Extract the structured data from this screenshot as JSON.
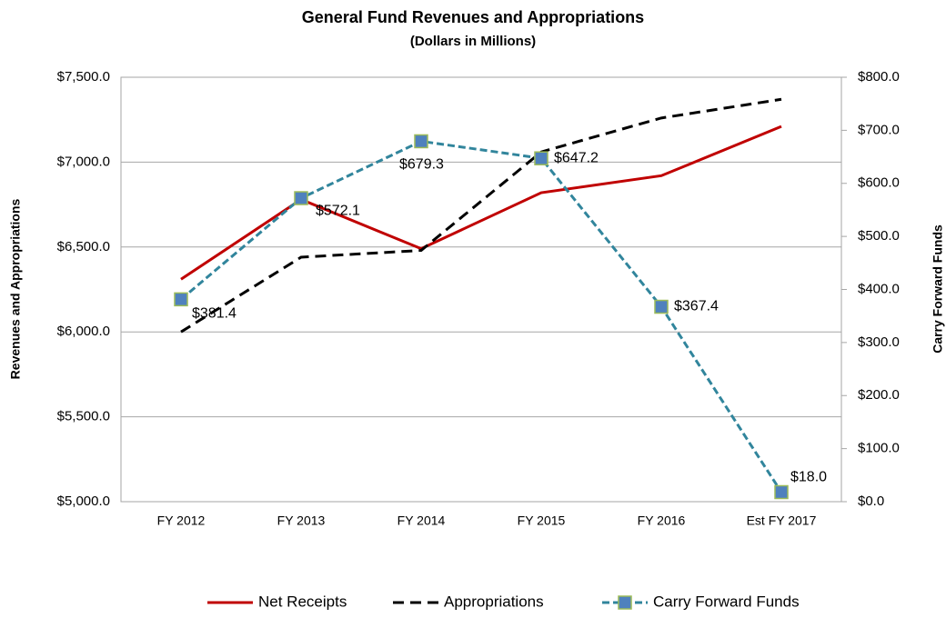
{
  "chart_data": {
    "type": "line",
    "title": "General Fund Revenues and Appropriations",
    "subtitle": "(Dollars in Millions)",
    "ylabel": "Revenues and Appropriations",
    "y2label": "Carry Forward Funds",
    "categories": [
      "FY 2012",
      "FY 2013",
      "FY 2014",
      "FY 2015",
      "FY 2016",
      "Est FY 2017"
    ],
    "series": [
      {
        "name": "Net Receipts",
        "color": "#c00000",
        "values": [
          6310,
          6780,
          6490,
          6820,
          6920,
          7210
        ]
      },
      {
        "name": "Appropriations",
        "color": "#000000",
        "values": [
          6000,
          6440,
          6480,
          7060,
          7260,
          7370
        ]
      },
      {
        "name": "Carry Forward Funds",
        "color": "#31859c",
        "axis": "y2",
        "values": [
          381.4,
          572.1,
          679.3,
          647.2,
          367.4,
          18.0
        ],
        "value_labels": [
          "$381.4",
          "$572.1",
          "$679.3",
          "$647.2",
          "$367.4",
          "$18.0"
        ]
      }
    ],
    "ylim": [
      5000,
      7500
    ],
    "yticks": [
      {
        "value": 5000,
        "label": "$5,000.0"
      },
      {
        "value": 5500,
        "label": "$5,500.0"
      },
      {
        "value": 6000,
        "label": "$6,000.0"
      },
      {
        "value": 6500,
        "label": "$6,500.0"
      },
      {
        "value": 7000,
        "label": "$7,000.0"
      },
      {
        "value": 7500,
        "label": "$7,500.0"
      }
    ],
    "y2lim": [
      0,
      800
    ],
    "y2ticks": [
      {
        "value": 0,
        "label": "$0.0"
      },
      {
        "value": 100,
        "label": "$100.0"
      },
      {
        "value": 200,
        "label": "$200.0"
      },
      {
        "value": 300,
        "label": "$300.0"
      },
      {
        "value": 400,
        "label": "$400.0"
      },
      {
        "value": 500,
        "label": "$500.0"
      },
      {
        "value": 600,
        "label": "$600.0"
      },
      {
        "value": 700,
        "label": "$700.0"
      },
      {
        "value": 800,
        "label": "$800.0"
      }
    ],
    "grid": true,
    "legend": "bottom"
  }
}
